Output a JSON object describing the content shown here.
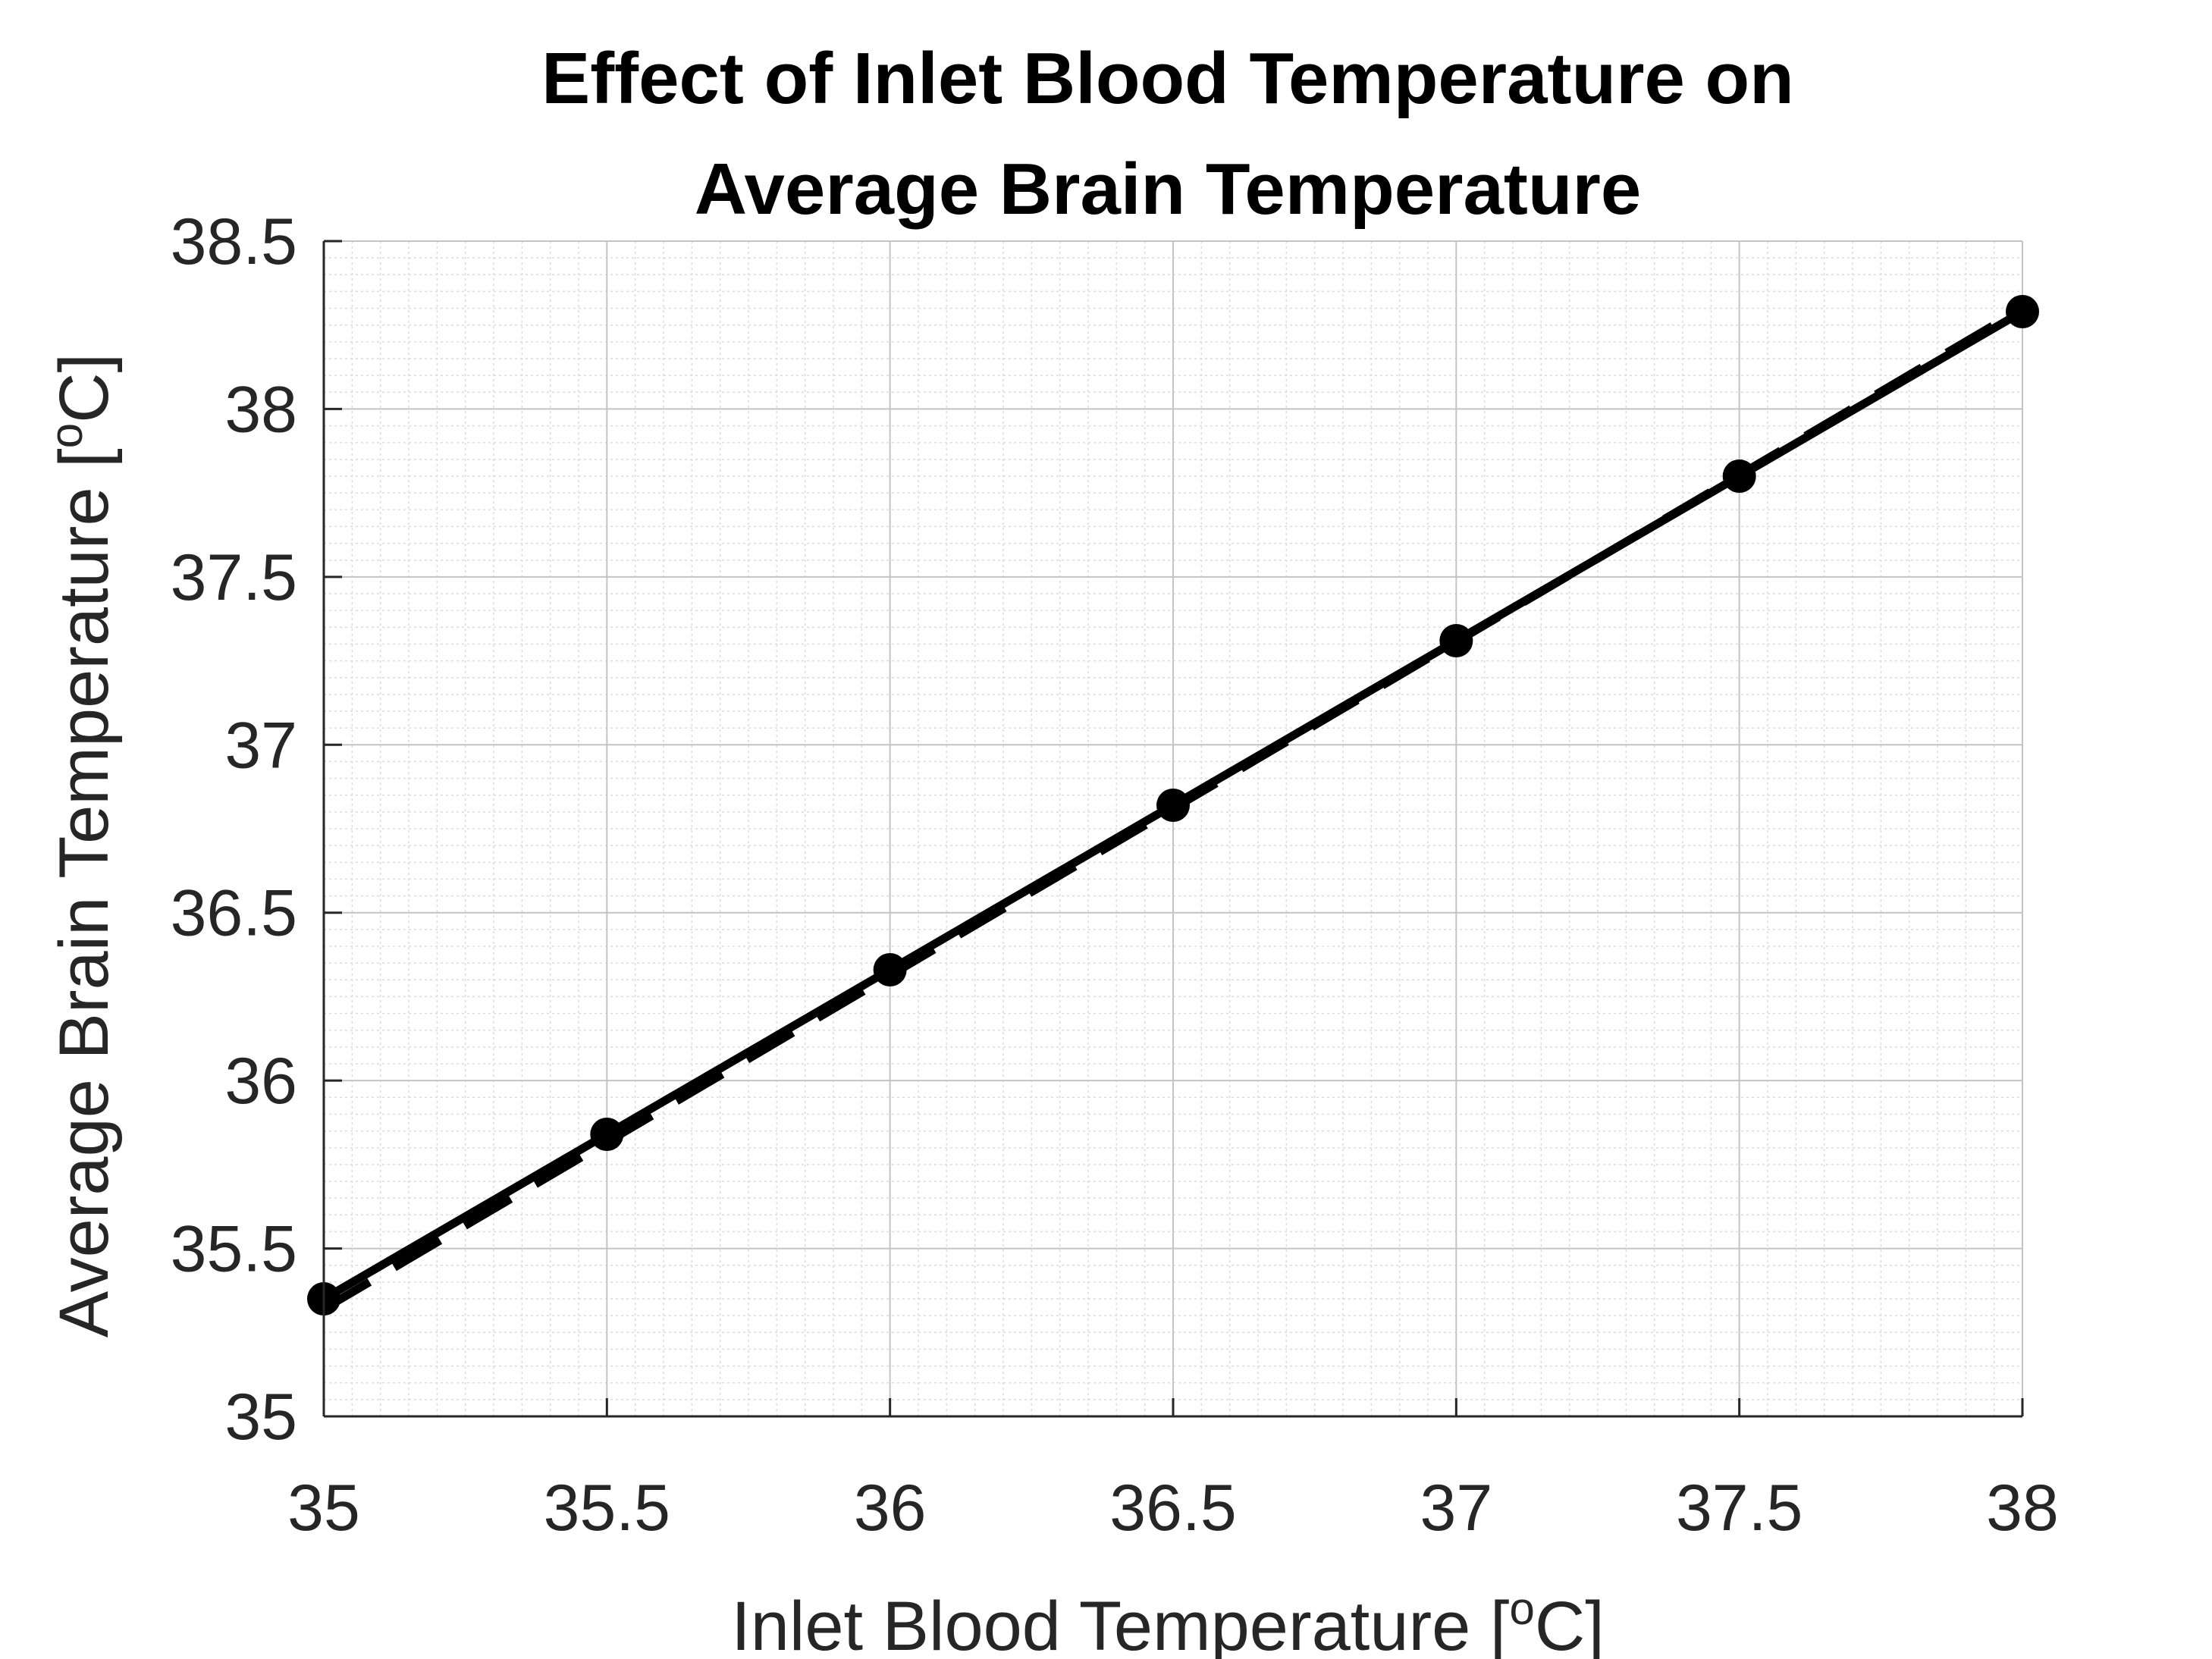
{
  "chart_data": {
    "type": "line",
    "title_lines": [
      "Effect of Inlet Blood Temperature on",
      "Average Brain Temperature"
    ],
    "xlabel": {
      "text": "Inlet Blood Temperature [",
      "superscript": "o",
      "unit": "C]"
    },
    "ylabel": {
      "text": "Average Brain Temperature [",
      "superscript": "o",
      "unit": "C]"
    },
    "xlim": [
      35,
      38
    ],
    "ylim": [
      35,
      38.5
    ],
    "x_ticks": [
      35,
      35.5,
      36,
      36.5,
      37,
      37.5,
      38
    ],
    "x_tick_labels": [
      "35",
      "35.5",
      "36",
      "36.5",
      "37",
      "37.5",
      "38"
    ],
    "y_ticks": [
      35,
      35.5,
      36,
      36.5,
      37,
      37.5,
      38,
      38.5
    ],
    "y_tick_labels": [
      "35",
      "35.5",
      "36",
      "36.5",
      "37",
      "37.5",
      "38",
      "38.5"
    ],
    "grid": true,
    "minor_grid": true,
    "legend": "none",
    "series": [
      {
        "line_style": "solid",
        "marker": "circle",
        "color": "#000000",
        "x": [
          35,
          35.5,
          36,
          36.5,
          37,
          37.5,
          38
        ],
        "y": [
          35.35,
          35.84,
          36.33,
          36.82,
          37.31,
          37.8,
          38.29
        ]
      },
      {
        "line_style": "dashed",
        "marker": "none",
        "color": "#000000",
        "x": [
          35,
          38
        ],
        "y": [
          35.32,
          38.3
        ]
      }
    ]
  }
}
